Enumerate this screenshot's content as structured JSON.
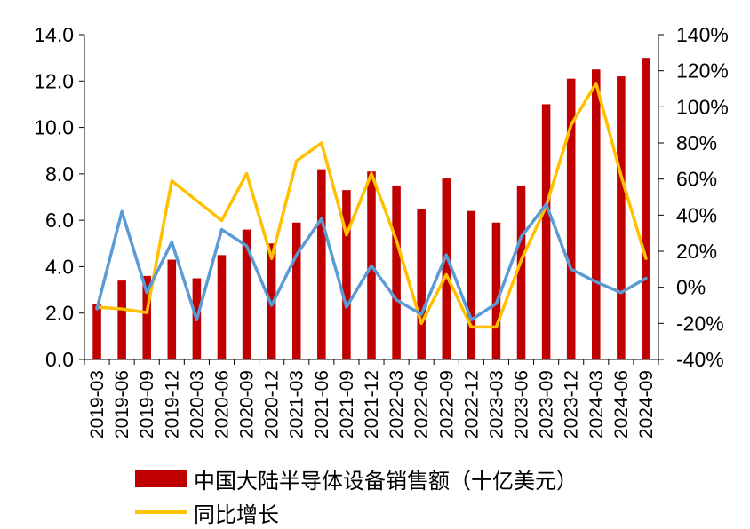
{
  "chart_data": {
    "type": "bar",
    "categories": [
      "2019-03",
      "2019-06",
      "2019-09",
      "2019-12",
      "2020-03",
      "2020-06",
      "2020-09",
      "2020-12",
      "2021-03",
      "2021-06",
      "2021-09",
      "2021-12",
      "2022-03",
      "2022-06",
      "2022-09",
      "2022-12",
      "2023-03",
      "2023-06",
      "2023-09",
      "2023-12",
      "2024-03",
      "2024-06",
      "2024-09"
    ],
    "series": [
      {
        "name": "中国大陆半导体设备销售额（十亿美元）",
        "kind": "bar",
        "axis": "left",
        "color": "#C00000",
        "values": [
          2.4,
          3.4,
          3.6,
          4.3,
          3.5,
          4.5,
          5.6,
          5.0,
          5.9,
          8.2,
          7.3,
          8.1,
          7.5,
          6.5,
          7.8,
          6.4,
          5.9,
          7.5,
          11.0,
          12.1,
          12.5,
          12.2,
          13.0
        ]
      },
      {
        "name": "同比增长",
        "kind": "line",
        "axis": "right",
        "color": "#FFC000",
        "values": [
          -11,
          -12,
          -14,
          59,
          48,
          37,
          63,
          16,
          70,
          80,
          29,
          63,
          26,
          -20,
          7,
          -22,
          -22,
          15,
          45,
          90,
          113,
          62,
          16
        ]
      },
      {
        "kind": "line",
        "axis": "right",
        "color": "#5B9BD5",
        "values": [
          -12,
          42,
          -3,
          25,
          -18,
          32,
          23,
          -10,
          18,
          38,
          -11,
          12,
          -7,
          -15,
          18,
          -18,
          -9,
          28,
          46,
          10,
          3,
          -3,
          5
        ]
      }
    ],
    "left_axis": {
      "ylim": [
        0,
        14
      ],
      "ticks": [
        "0.0",
        "2.0",
        "4.0",
        "6.0",
        "8.0",
        "10.0",
        "12.0",
        "14.0"
      ]
    },
    "right_axis": {
      "ylim": [
        -40,
        140
      ],
      "ticks": [
        "-40%",
        "-20%",
        "0%",
        "20%",
        "40%",
        "60%",
        "80%",
        "100%",
        "120%",
        "140%"
      ]
    },
    "grid": false,
    "legend_position": "bottom"
  },
  "legend": {
    "bar_label": "中国大陆半导体设备销售额（十亿美元）",
    "line_label": "同比增长"
  }
}
